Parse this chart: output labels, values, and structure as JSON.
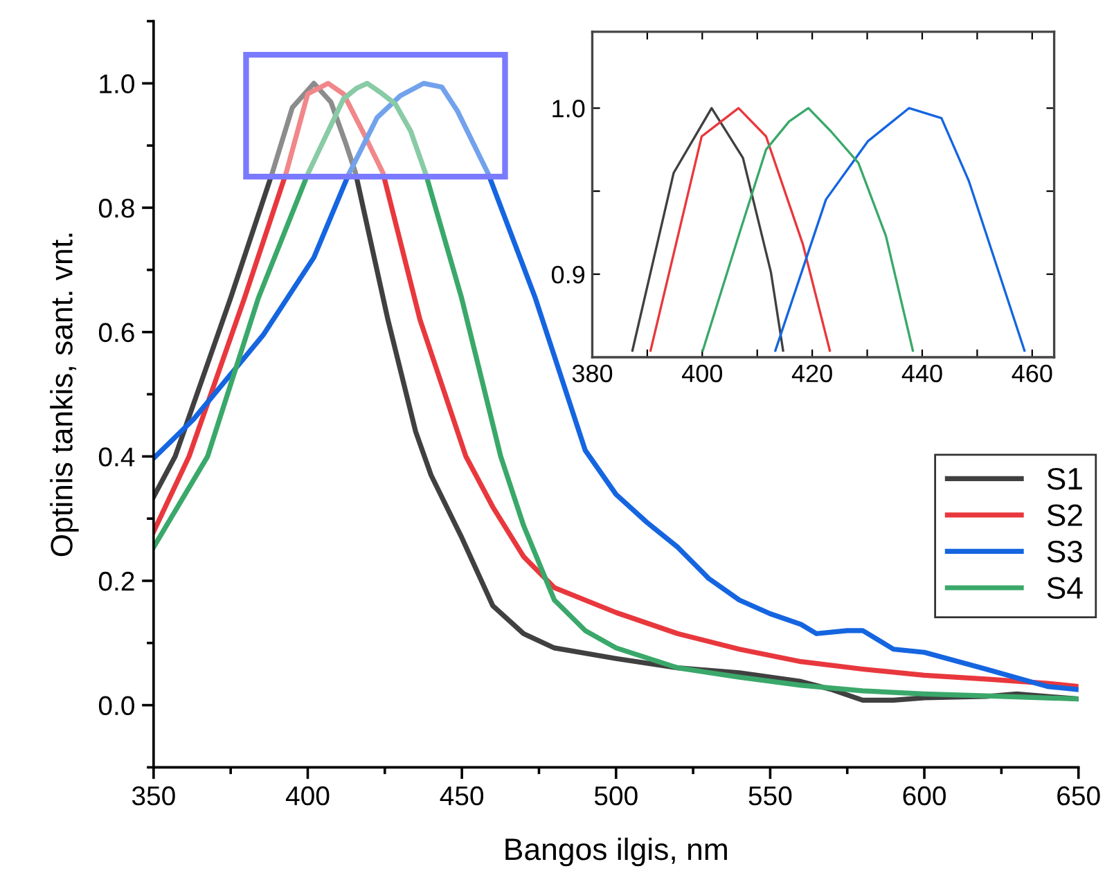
{
  "chart_data": [
    {
      "type": "line",
      "xlabel": "Bangos ilgis, nm",
      "ylabel": "Optinis tankis, sant. vnt.",
      "xlim": [
        350,
        650
      ],
      "ylim": [
        -0.1,
        1.1
      ],
      "xticks": [
        350,
        {
          "value": 375,
          "label": null
        },
        400,
        {
          "value": 425,
          "label": null
        },
        450,
        {
          "value": 475,
          "label": null
        },
        500,
        {
          "value": 525,
          "label": null
        },
        550,
        {
          "value": 575,
          "label": null
        },
        600,
        {
          "value": 625,
          "label": null
        },
        650
      ],
      "yticks": [
        {
          "value": -0.1,
          "label": null
        },
        {
          "value": 0.0,
          "label": "0.0"
        },
        {
          "value": 0.1,
          "label": null
        },
        {
          "value": 0.2,
          "label": "0.2"
        },
        {
          "value": 0.3,
          "label": null
        },
        {
          "value": 0.4,
          "label": "0.4"
        },
        {
          "value": 0.5,
          "label": null
        },
        {
          "value": 0.6,
          "label": "0.6"
        },
        {
          "value": 0.7,
          "label": null
        },
        {
          "value": 0.8,
          "label": "0.8"
        },
        {
          "value": 0.9,
          "label": null
        },
        {
          "value": 1.0,
          "label": "1.0"
        },
        {
          "value": 1.1,
          "label": null
        }
      ],
      "grid": false,
      "legend": "right",
      "line_style": "solid",
      "series": [
        {
          "name": "S1",
          "color": "#404040",
          "x": [
            350,
            357,
            375,
            388.5,
            395,
            402,
            407.5,
            412.5,
            415.5,
            426,
            435,
            440,
            450,
            460,
            470,
            480,
            500,
            520,
            540,
            560,
            570,
            580,
            590,
            600,
            620,
            630,
            650
          ],
          "values": [
            0.335,
            0.4,
            0.655,
            0.856,
            0.961,
            1.0,
            0.97,
            0.901,
            0.856,
            0.62,
            0.44,
            0.37,
            0.269,
            0.16,
            0.115,
            0.092,
            0.075,
            0.06,
            0.052,
            0.038,
            0.025,
            0.008,
            0.008,
            0.012,
            0.014,
            0.018,
            0.01
          ]
        },
        {
          "name": "S2",
          "color": "#e8383d",
          "x": [
            350,
            361.5,
            379.5,
            393,
            400,
            406.6,
            411.6,
            418.3,
            424.4,
            436.4,
            451.3,
            460,
            470,
            480,
            500,
            520,
            540,
            560,
            580,
            600,
            620,
            640,
            650
          ],
          "values": [
            0.279,
            0.4,
            0.655,
            0.856,
            0.983,
            1.0,
            0.983,
            0.918,
            0.856,
            0.62,
            0.4,
            0.319,
            0.239,
            0.189,
            0.149,
            0.115,
            0.09,
            0.07,
            0.058,
            0.048,
            0.042,
            0.035,
            0.03
          ]
        },
        {
          "name": "S3",
          "color": "#1565e0",
          "x": [
            350,
            363,
            385.5,
            402,
            413.3,
            422.5,
            430,
            437.6,
            443.5,
            448.5,
            458.6,
            473.8,
            490,
            500,
            510,
            520,
            530,
            540,
            550,
            560,
            565,
            575,
            580,
            590,
            600,
            620,
            640,
            650
          ],
          "values": [
            0.397,
            0.46,
            0.595,
            0.72,
            0.854,
            0.945,
            0.98,
            1.0,
            0.994,
            0.956,
            0.854,
            0.655,
            0.41,
            0.339,
            0.294,
            0.254,
            0.204,
            0.169,
            0.147,
            0.13,
            0.115,
            0.12,
            0.12,
            0.09,
            0.085,
            0.058,
            0.03,
            0.025
          ]
        },
        {
          "name": "S4",
          "color": "#3aa86a",
          "x": [
            350,
            367.5,
            384,
            400,
            406.6,
            411.6,
            415.8,
            419.3,
            423.4,
            428.4,
            433.4,
            438.3,
            449.9,
            462.6,
            470,
            480,
            490,
            500,
            520,
            540,
            560,
            580,
            600,
            620,
            650
          ],
          "values": [
            0.254,
            0.4,
            0.655,
            0.854,
            0.923,
            0.975,
            0.992,
            1.0,
            0.986,
            0.967,
            0.923,
            0.854,
            0.655,
            0.4,
            0.289,
            0.169,
            0.12,
            0.092,
            0.06,
            0.045,
            0.032,
            0.023,
            0.018,
            0.015,
            0.01
          ]
        }
      ]
    },
    {
      "type": "line",
      "xlim": [
        380,
        464
      ],
      "ylim": [
        0.85,
        1.046
      ],
      "xticks": [
        380,
        {
          "value": 390,
          "label": null
        },
        400,
        {
          "value": 410,
          "label": null
        },
        420,
        {
          "value": 430,
          "label": null
        },
        440,
        {
          "value": 450,
          "label": null
        },
        460
      ],
      "yticks": [
        {
          "value": 0.9,
          "label": "0.9"
        },
        {
          "value": 0.95,
          "label": null
        },
        {
          "value": 1.0,
          "label": "1.0"
        }
      ],
      "grid": false,
      "line_style": "solid",
      "series": [
        {
          "color": "#404040",
          "x": [
            387.3,
            394.8,
            401.7,
            407.4,
            412.5,
            414.7
          ],
          "values": [
            0.854,
            0.961,
            1.0,
            0.97,
            0.901,
            0.854
          ]
        },
        {
          "color": "#e8383d",
          "x": [
            390.6,
            399.9,
            406.6,
            411.6,
            418.3,
            423.2
          ],
          "values": [
            0.854,
            0.983,
            1.0,
            0.983,
            0.918,
            0.854
          ]
        },
        {
          "color": "#1565e0",
          "x": [
            413.3,
            422.5,
            430.1,
            437.6,
            443.5,
            448.5,
            458.6
          ],
          "values": [
            0.854,
            0.945,
            0.98,
            1.0,
            0.994,
            0.956,
            0.854
          ]
        },
        {
          "color": "#3aa86a",
          "x": [
            400.1,
            406.6,
            411.6,
            415.8,
            419.3,
            423.4,
            428.4,
            433.4,
            438.3
          ],
          "values": [
            0.854,
            0.923,
            0.975,
            0.992,
            1.0,
            0.986,
            0.967,
            0.923,
            0.854
          ]
        }
      ]
    }
  ]
}
